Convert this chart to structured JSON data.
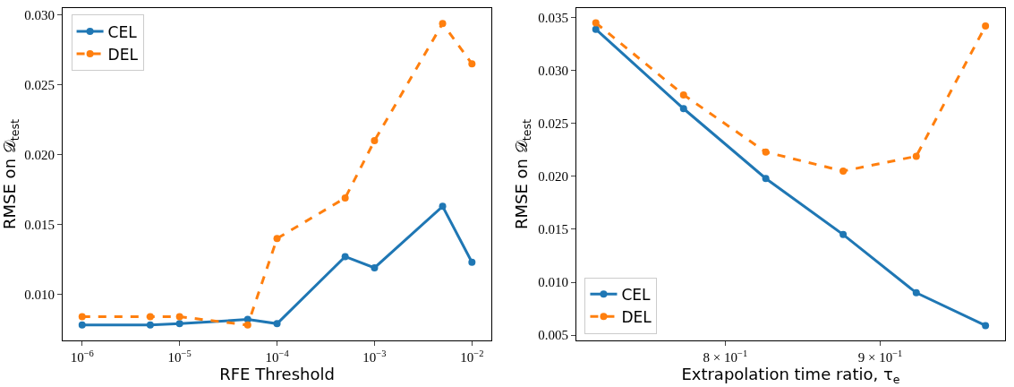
{
  "chart_data": [
    {
      "type": "line",
      "xlabel": "RFE Threshold",
      "ylabel": "RMSE on 𝒟$_{test}$",
      "log": "x",
      "x": [
        1e-06,
        5e-06,
        1e-05,
        5e-05,
        0.0001,
        0.0005,
        0.001,
        0.005,
        0.01
      ],
      "series": [
        {
          "name": "CEL",
          "color": "#1f77b4",
          "line_style": "solid",
          "values": [
            0.0078,
            0.0078,
            0.0079,
            0.0082,
            0.0079,
            0.0127,
            0.0119,
            0.0163,
            0.0123
          ]
        },
        {
          "name": "DEL",
          "color": "#ff7f0e",
          "line_style": "dashed",
          "values": [
            0.0084,
            0.0084,
            0.0084,
            0.0078,
            0.014,
            0.0169,
            0.021,
            0.0294,
            0.0265
          ]
        }
      ],
      "xlim": [
        6.31e-07,
        0.01585
      ],
      "xticks": [
        {
          "value": 1e-06,
          "label": "10$^{−6}$"
        },
        {
          "value": 1e-05,
          "label": "10$^{−5}$"
        },
        {
          "value": 0.0001,
          "label": "10$^{−4}$"
        },
        {
          "value": 0.001,
          "label": "10$^{−3}$"
        },
        {
          "value": 0.01,
          "label": "10$^{−2}$"
        }
      ],
      "ylim": [
        0.0067,
        0.0305
      ],
      "yticks": [
        {
          "value": 0.01,
          "label": "0.010"
        },
        {
          "value": 0.015,
          "label": "0.015"
        },
        {
          "value": 0.02,
          "label": "0.020"
        },
        {
          "value": 0.025,
          "label": "0.025"
        },
        {
          "value": 0.03,
          "label": "0.030"
        }
      ],
      "marker": "circle",
      "legend": "top left"
    },
    {
      "type": "line",
      "xlabel": "Extrapolation time ratio, τ$_{e}$",
      "ylabel": "RMSE on 𝒟$_{test}$",
      "log": "x",
      "x": [
        0.725,
        0.775,
        0.825,
        0.875,
        0.925,
        0.975
      ],
      "series": [
        {
          "name": "CEL",
          "color": "#1f77b4",
          "line_style": "solid",
          "values": [
            0.0339,
            0.0264,
            0.0198,
            0.0145,
            0.009,
            0.0059
          ]
        },
        {
          "name": "DEL",
          "color": "#ff7f0e",
          "line_style": "dashed",
          "values": [
            0.0345,
            0.0277,
            0.0223,
            0.0205,
            0.0219,
            0.0342
          ]
        }
      ],
      "xlim": [
        0.7143,
        0.9896
      ],
      "xticks": [
        {
          "value": 0.8,
          "label": "8 × 10$^{−1}$"
        },
        {
          "value": 0.9,
          "label": "9 × 10$^{−1}$"
        }
      ],
      "ylim": [
        0.0045,
        0.0359
      ],
      "yticks": [
        {
          "value": 0.005,
          "label": "0.005"
        },
        {
          "value": 0.01,
          "label": "0.010"
        },
        {
          "value": 0.015,
          "label": "0.015"
        },
        {
          "value": 0.02,
          "label": "0.020"
        },
        {
          "value": 0.025,
          "label": "0.025"
        },
        {
          "value": 0.03,
          "label": "0.030"
        },
        {
          "value": 0.035,
          "label": "0.035"
        }
      ],
      "marker": "circle",
      "legend": "bottom left"
    }
  ]
}
